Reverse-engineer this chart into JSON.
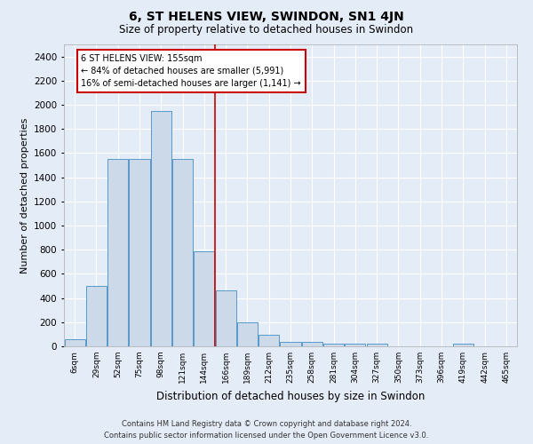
{
  "title": "6, ST HELENS VIEW, SWINDON, SN1 4JN",
  "subtitle": "Size of property relative to detached houses in Swindon",
  "xlabel": "Distribution of detached houses by size in Swindon",
  "ylabel": "Number of detached properties",
  "categories": [
    "6sqm",
    "29sqm",
    "52sqm",
    "75sqm",
    "98sqm",
    "121sqm",
    "144sqm",
    "166sqm",
    "189sqm",
    "212sqm",
    "235sqm",
    "258sqm",
    "281sqm",
    "304sqm",
    "327sqm",
    "350sqm",
    "373sqm",
    "396sqm",
    "419sqm",
    "442sqm",
    "465sqm"
  ],
  "bar_heights": [
    60,
    500,
    1550,
    1550,
    1950,
    1550,
    790,
    460,
    195,
    95,
    40,
    35,
    25,
    22,
    20,
    0,
    0,
    0,
    20,
    0,
    0
  ],
  "bar_color": "#ccd9e8",
  "bar_edge_color": "#5599cc",
  "background_color": "#e4ecf7",
  "fig_background_color": "#e4ecf7",
  "grid_color": "#ffffff",
  "red_line_x": 6.5,
  "annotation_text": "6 ST HELENS VIEW: 155sqm\n← 84% of detached houses are smaller (5,991)\n16% of semi-detached houses are larger (1,141) →",
  "annotation_box_color": "#ffffff",
  "annotation_box_edge": "#cc0000",
  "ylim": [
    0,
    2500
  ],
  "yticks": [
    0,
    200,
    400,
    600,
    800,
    1000,
    1200,
    1400,
    1600,
    1800,
    2000,
    2200,
    2400
  ],
  "footer_line1": "Contains HM Land Registry data © Crown copyright and database right 2024.",
  "footer_line2": "Contains public sector information licensed under the Open Government Licence v3.0."
}
